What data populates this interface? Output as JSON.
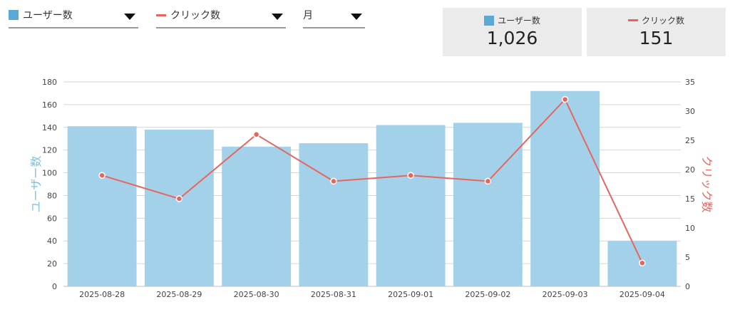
{
  "controls": {
    "series1": {
      "label": "ユーザー数"
    },
    "series2": {
      "label": "クリック数"
    },
    "period": {
      "label": "月"
    }
  },
  "cards": [
    {
      "label": "ユーザー数",
      "value": "1,026"
    },
    {
      "label": "クリック数",
      "value": "151"
    }
  ],
  "colors": {
    "bar": "#a4d1ea",
    "bar_swatch": "#5aa8d6",
    "line": "#e8655e",
    "left_axis_title": "#7fc0e3",
    "right_axis_title": "#e8655e"
  },
  "chart_data": {
    "type": "bar+line",
    "categories": [
      "2025-08-28",
      "2025-08-29",
      "2025-08-30",
      "2025-08-31",
      "2025-09-01",
      "2025-09-02",
      "2025-09-03",
      "2025-09-04"
    ],
    "series": [
      {
        "name": "ユーザー数",
        "type": "bar",
        "axis": "left",
        "values": [
          141,
          138,
          123,
          126,
          142,
          144,
          172,
          40
        ]
      },
      {
        "name": "クリック数",
        "type": "line",
        "axis": "right",
        "values": [
          19,
          15,
          26,
          18,
          19,
          18,
          32,
          4
        ]
      }
    ],
    "y_left": {
      "label": "ユーザー数",
      "range": [
        0,
        180
      ],
      "ticks": [
        0,
        20,
        40,
        60,
        80,
        100,
        120,
        140,
        160,
        180
      ]
    },
    "y_right": {
      "label": "クリック数",
      "range": [
        0,
        35
      ],
      "ticks": [
        0,
        5,
        10,
        15,
        20,
        25,
        30,
        35
      ]
    },
    "grid": true,
    "legend": "none"
  }
}
